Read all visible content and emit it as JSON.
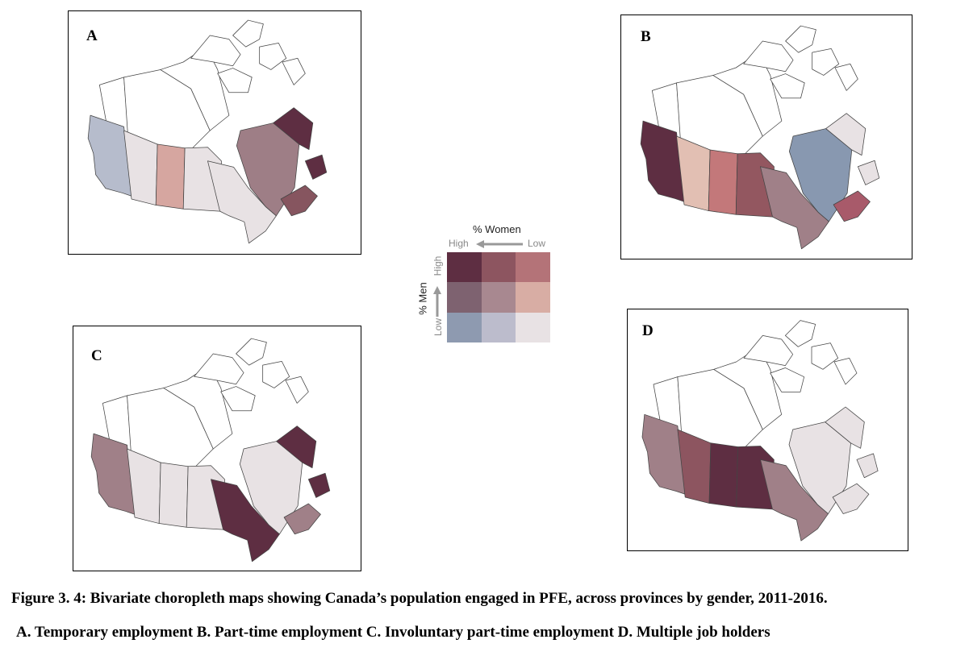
{
  "panels": [
    {
      "label": "A",
      "colors": {
        "bc": "#b6bccc",
        "ab": "#e8e2e4",
        "sk": "#d6a6a0",
        "mb": "#e8e2e4",
        "on": "#e8e2e4",
        "qc": "#9e7e86",
        "nl": "#5e2e42",
        "mar": "#86555f"
      }
    },
    {
      "label": "B",
      "colors": {
        "bc": "#5e2e42",
        "ab": "#e2bfb3",
        "sk": "#c3787a",
        "mb": "#935760",
        "on": "#a08088",
        "qc": "#8898b0",
        "nl": "#e8e2e4",
        "mar": "#a85a6a"
      }
    },
    {
      "label": "C",
      "colors": {
        "bc": "#a08088",
        "ab": "#e8e2e4",
        "sk": "#e8e2e4",
        "mb": "#e8e2e4",
        "on": "#5e2e42",
        "qc": "#e8e2e4",
        "nl": "#5e2e42",
        "mar": "#a08088"
      }
    },
    {
      "label": "D",
      "colors": {
        "bc": "#a08088",
        "ab": "#8d5560",
        "sk": "#5e2e42",
        "mb": "#5e2e42",
        "on": "#a08088",
        "qc": "#e8e2e4",
        "nl": "#e8e2e4",
        "mar": "#e8e2e4"
      }
    }
  ],
  "legend": {
    "title": "% Women",
    "women_high": "High",
    "women_low": "Low",
    "axis_title": "% Men",
    "men_high": "High",
    "men_low": "Low",
    "grid": [
      [
        "#5e2e42",
        "#8d5560",
        "#b47378"
      ],
      [
        "#7e6270",
        "#a88890",
        "#d8ada4"
      ],
      [
        "#8e9ab0",
        "#bcbccc",
        "#e8e2e4"
      ]
    ]
  },
  "caption": {
    "line1": "Figure 3. 4: Bivariate choropleth maps showing  Canada’s population engaged in PFE, across provinces by gender, 2011-2016.",
    "line2_a": "A",
    "line2_rest": ". Temporary employment B. Part-time employment C. Involuntary  part-time employment D. Multiple job holders"
  }
}
